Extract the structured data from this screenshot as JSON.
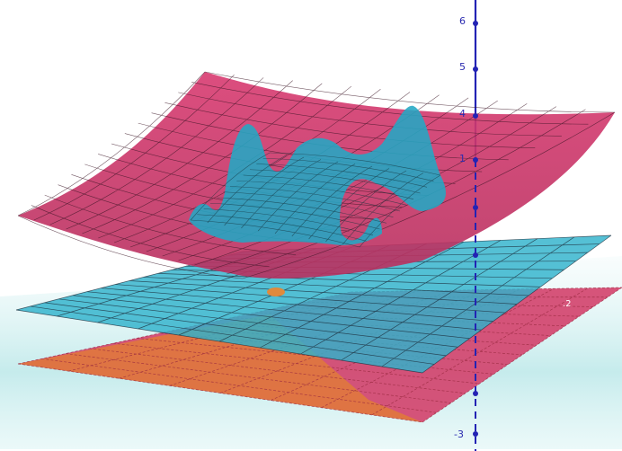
{
  "view": {
    "type": "3d-graphics",
    "colors": {
      "background": "#ffffff",
      "axis": "#2323b4",
      "pink_surface": "#d2386e",
      "cyan_surface": "#22a8c4",
      "cyan_plane": "#2fb2cc",
      "orange_plane": "#e07d3c",
      "floor_haze": "#bfe9ea",
      "grid": "#1b2230"
    },
    "z_axis": {
      "ticks": [
        {
          "label": "6"
        },
        {
          "label": "5"
        },
        {
          "label": "4"
        },
        {
          "label": "1"
        },
        {
          "label": "-3"
        }
      ]
    },
    "corner_label": ".2"
  }
}
